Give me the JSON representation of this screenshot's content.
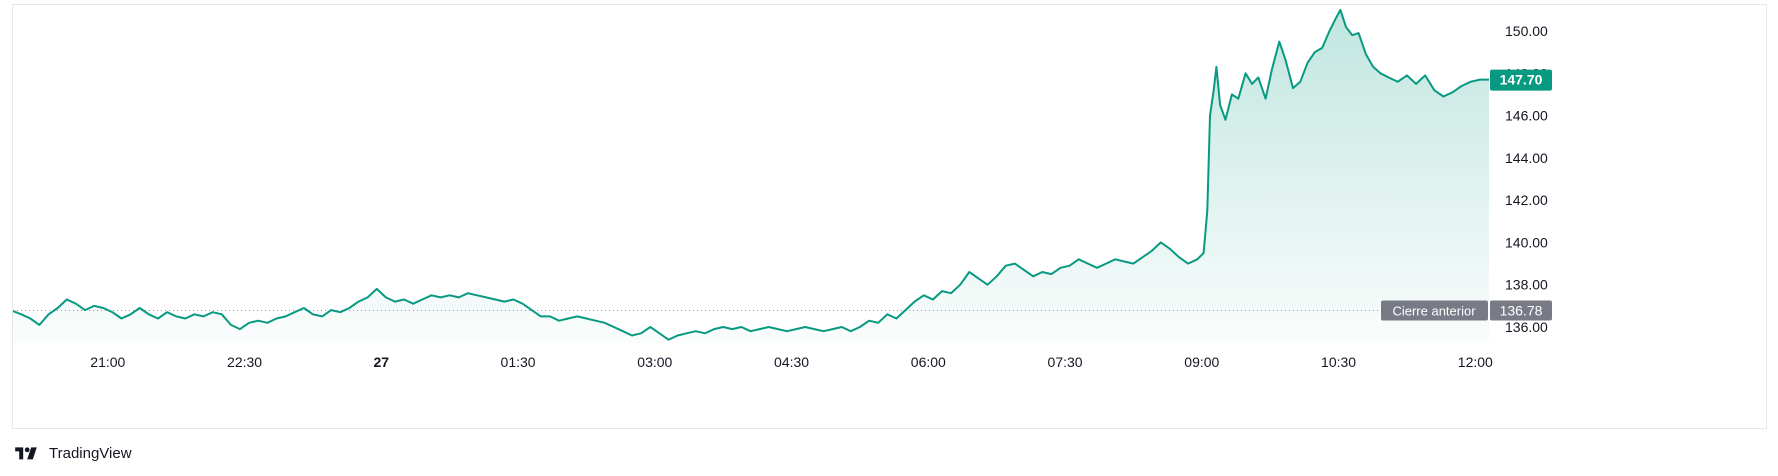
{
  "brand": {
    "name": "TradingView",
    "logo_icon": "tradingview-logo-icon"
  },
  "colors": {
    "line": "#089981",
    "fill_top": "rgba(8,153,129,0.25)",
    "fill_bottom": "rgba(8,153,129,0.02)",
    "last_badge": "#089981",
    "prev_badge": "#787b86",
    "grid_border": "#e5e7eb",
    "text": "#131722"
  },
  "last_price": {
    "value": 147.7,
    "label": "147.70"
  },
  "previous_close": {
    "label": "Cierre anterior",
    "value": 136.78,
    "value_label": "136.78"
  },
  "chart_data": {
    "type": "area",
    "title": "",
    "xlabel": "",
    "ylabel": "",
    "ylim": [
      135.3,
      151.0
    ],
    "y_ticks": [
      "150.00",
      "148.00",
      "146.00",
      "144.00",
      "142.00",
      "140.00",
      "138.00",
      "136.00"
    ],
    "x_ticks": [
      {
        "label": "21:00",
        "bold": false,
        "h": 21.0
      },
      {
        "label": "22:30",
        "bold": false,
        "h": 22.5
      },
      {
        "label": "27",
        "bold": true,
        "h": 24.0
      },
      {
        "label": "01:30",
        "bold": false,
        "h": 25.5
      },
      {
        "label": "03:00",
        "bold": false,
        "h": 27.0
      },
      {
        "label": "04:30",
        "bold": false,
        "h": 28.5
      },
      {
        "label": "06:00",
        "bold": false,
        "h": 30.0
      },
      {
        "label": "07:30",
        "bold": false,
        "h": 31.5
      },
      {
        "label": "09:00",
        "bold": false,
        "h": 33.0
      },
      {
        "label": "10:30",
        "bold": false,
        "h": 34.5
      },
      {
        "label": "12:00",
        "bold": false,
        "h": 36.0
      }
    ],
    "x_range_hours": [
      19.96,
      36.15
    ],
    "series": [
      {
        "name": "",
        "points": [
          [
            19.96,
            136.75
          ],
          [
            20.05,
            136.6
          ],
          [
            20.15,
            136.4
          ],
          [
            20.25,
            136.1
          ],
          [
            20.35,
            136.6
          ],
          [
            20.45,
            136.9
          ],
          [
            20.55,
            137.3
          ],
          [
            20.65,
            137.1
          ],
          [
            20.75,
            136.8
          ],
          [
            20.85,
            137.0
          ],
          [
            20.95,
            136.9
          ],
          [
            21.05,
            136.7
          ],
          [
            21.15,
            136.4
          ],
          [
            21.25,
            136.6
          ],
          [
            21.35,
            136.9
          ],
          [
            21.45,
            136.6
          ],
          [
            21.55,
            136.4
          ],
          [
            21.65,
            136.7
          ],
          [
            21.75,
            136.5
          ],
          [
            21.85,
            136.4
          ],
          [
            21.95,
            136.6
          ],
          [
            22.05,
            136.5
          ],
          [
            22.15,
            136.7
          ],
          [
            22.25,
            136.6
          ],
          [
            22.35,
            136.1
          ],
          [
            22.45,
            135.9
          ],
          [
            22.55,
            136.2
          ],
          [
            22.65,
            136.3
          ],
          [
            22.75,
            136.2
          ],
          [
            22.85,
            136.4
          ],
          [
            22.95,
            136.5
          ],
          [
            23.05,
            136.7
          ],
          [
            23.15,
            136.9
          ],
          [
            23.25,
            136.6
          ],
          [
            23.35,
            136.5
          ],
          [
            23.45,
            136.8
          ],
          [
            23.55,
            136.7
          ],
          [
            23.65,
            136.9
          ],
          [
            23.75,
            137.2
          ],
          [
            23.85,
            137.4
          ],
          [
            23.95,
            137.8
          ],
          [
            24.05,
            137.4
          ],
          [
            24.15,
            137.2
          ],
          [
            24.25,
            137.3
          ],
          [
            24.35,
            137.1
          ],
          [
            24.45,
            137.3
          ],
          [
            24.55,
            137.5
          ],
          [
            24.65,
            137.4
          ],
          [
            24.75,
            137.5
          ],
          [
            24.85,
            137.4
          ],
          [
            24.95,
            137.6
          ],
          [
            25.05,
            137.5
          ],
          [
            25.15,
            137.4
          ],
          [
            25.25,
            137.3
          ],
          [
            25.35,
            137.2
          ],
          [
            25.45,
            137.3
          ],
          [
            25.55,
            137.1
          ],
          [
            25.65,
            136.8
          ],
          [
            25.75,
            136.5
          ],
          [
            25.85,
            136.5
          ],
          [
            25.95,
            136.3
          ],
          [
            26.05,
            136.4
          ],
          [
            26.15,
            136.5
          ],
          [
            26.25,
            136.4
          ],
          [
            26.35,
            136.3
          ],
          [
            26.45,
            136.2
          ],
          [
            26.55,
            136.0
          ],
          [
            26.65,
            135.8
          ],
          [
            26.75,
            135.6
          ],
          [
            26.85,
            135.7
          ],
          [
            26.95,
            136.0
          ],
          [
            27.05,
            135.7
          ],
          [
            27.15,
            135.4
          ],
          [
            27.25,
            135.6
          ],
          [
            27.35,
            135.7
          ],
          [
            27.45,
            135.8
          ],
          [
            27.55,
            135.7
          ],
          [
            27.65,
            135.9
          ],
          [
            27.75,
            136.0
          ],
          [
            27.85,
            135.9
          ],
          [
            27.95,
            136.0
          ],
          [
            28.05,
            135.8
          ],
          [
            28.15,
            135.9
          ],
          [
            28.25,
            136.0
          ],
          [
            28.35,
            135.9
          ],
          [
            28.45,
            135.8
          ],
          [
            28.55,
            135.9
          ],
          [
            28.65,
            136.0
          ],
          [
            28.75,
            135.9
          ],
          [
            28.85,
            135.8
          ],
          [
            28.95,
            135.9
          ],
          [
            29.05,
            136.0
          ],
          [
            29.15,
            135.8
          ],
          [
            29.25,
            136.0
          ],
          [
            29.35,
            136.3
          ],
          [
            29.45,
            136.2
          ],
          [
            29.55,
            136.6
          ],
          [
            29.65,
            136.4
          ],
          [
            29.75,
            136.8
          ],
          [
            29.85,
            137.2
          ],
          [
            29.95,
            137.5
          ],
          [
            30.05,
            137.3
          ],
          [
            30.15,
            137.7
          ],
          [
            30.25,
            137.6
          ],
          [
            30.35,
            138.0
          ],
          [
            30.45,
            138.6
          ],
          [
            30.55,
            138.3
          ],
          [
            30.65,
            138.0
          ],
          [
            30.75,
            138.4
          ],
          [
            30.85,
            138.9
          ],
          [
            30.95,
            139.0
          ],
          [
            31.05,
            138.7
          ],
          [
            31.15,
            138.4
          ],
          [
            31.25,
            138.6
          ],
          [
            31.35,
            138.5
          ],
          [
            31.45,
            138.8
          ],
          [
            31.55,
            138.9
          ],
          [
            31.65,
            139.2
          ],
          [
            31.75,
            139.0
          ],
          [
            31.85,
            138.8
          ],
          [
            31.95,
            139.0
          ],
          [
            32.05,
            139.2
          ],
          [
            32.15,
            139.1
          ],
          [
            32.25,
            139.0
          ],
          [
            32.35,
            139.3
          ],
          [
            32.45,
            139.6
          ],
          [
            32.55,
            140.0
          ],
          [
            32.65,
            139.7
          ],
          [
            32.75,
            139.3
          ],
          [
            32.85,
            139.0
          ],
          [
            32.95,
            139.2
          ],
          [
            33.02,
            139.5
          ],
          [
            33.06,
            141.5
          ],
          [
            33.09,
            146.0
          ],
          [
            33.13,
            147.2
          ],
          [
            33.16,
            148.3
          ],
          [
            33.2,
            146.5
          ],
          [
            33.26,
            145.8
          ],
          [
            33.33,
            147.0
          ],
          [
            33.4,
            146.8
          ],
          [
            33.48,
            148.0
          ],
          [
            33.55,
            147.5
          ],
          [
            33.62,
            147.8
          ],
          [
            33.7,
            146.8
          ],
          [
            33.77,
            148.2
          ],
          [
            33.85,
            149.5
          ],
          [
            33.92,
            148.6
          ],
          [
            34.0,
            147.3
          ],
          [
            34.08,
            147.6
          ],
          [
            34.16,
            148.5
          ],
          [
            34.24,
            149.0
          ],
          [
            34.32,
            149.2
          ],
          [
            34.4,
            150.0
          ],
          [
            34.47,
            150.6
          ],
          [
            34.52,
            151.0
          ],
          [
            34.58,
            150.2
          ],
          [
            34.65,
            149.8
          ],
          [
            34.72,
            149.9
          ],
          [
            34.8,
            148.9
          ],
          [
            34.88,
            148.3
          ],
          [
            34.96,
            148.0
          ],
          [
            35.05,
            147.8
          ],
          [
            35.15,
            147.6
          ],
          [
            35.25,
            147.9
          ],
          [
            35.35,
            147.5
          ],
          [
            35.45,
            147.9
          ],
          [
            35.55,
            147.2
          ],
          [
            35.65,
            146.9
          ],
          [
            35.75,
            147.1
          ],
          [
            35.85,
            147.4
          ],
          [
            35.95,
            147.6
          ],
          [
            36.05,
            147.7
          ],
          [
            36.15,
            147.7
          ]
        ]
      }
    ]
  }
}
